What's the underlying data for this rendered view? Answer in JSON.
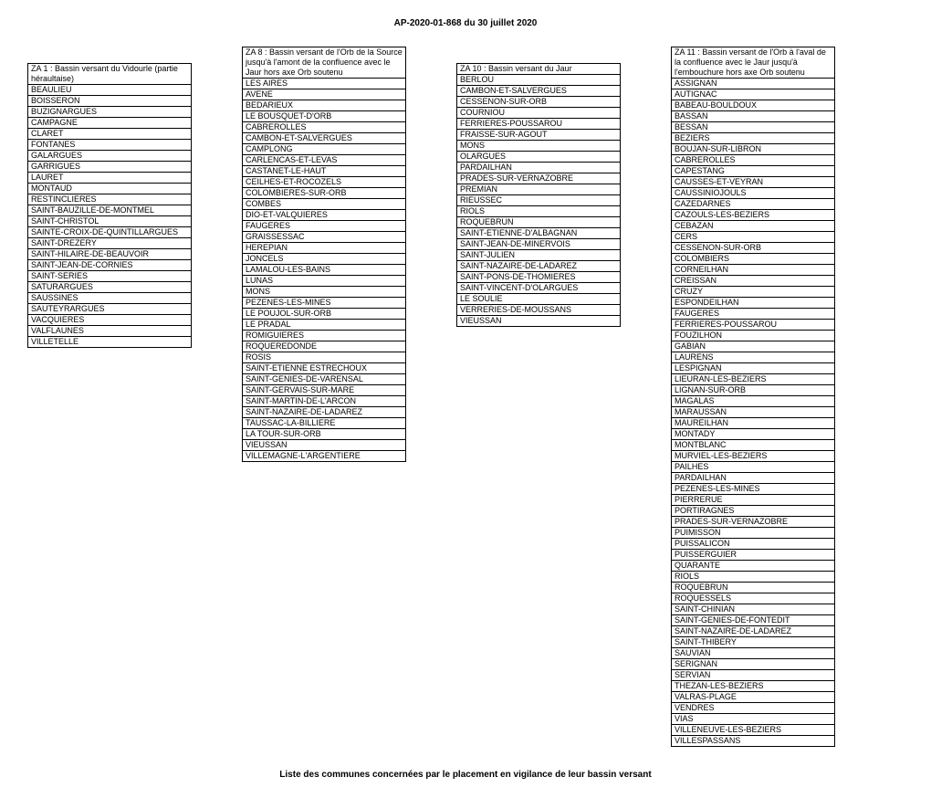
{
  "title": "AP-2020-01-868 du 30 juillet 2020",
  "footer": "Liste des communes concernées par le placement en vigilance de leur bassin versant",
  "tables": [
    {
      "header": "ZA 1 : Bassin versant du Vidourle (partie héraultaise)",
      "rows": [
        "BEAULIEU",
        "BOISSERON",
        "BUZIGNARGUES",
        "CAMPAGNE",
        "CLARET",
        "FONTANES",
        "GALARGUES",
        "GARRIGUES",
        "LAURET",
        "MONTAUD",
        "RESTINCLIERES",
        "SAINT-BAUZILLE-DE-MONTMEL",
        "SAINT-CHRISTOL",
        "SAINTE-CROIX-DE-QUINTILLARGUES",
        "SAINT-DREZERY",
        "SAINT-HILAIRE-DE-BEAUVOIR",
        "SAINT-JEAN-DE-CORNIES",
        "SAINT-SERIES",
        "SATURARGUES",
        "SAUSSINES",
        "SAUTEYRARGUES",
        "VACQUIERES",
        "VALFLAUNES",
        "VILLETELLE"
      ]
    },
    {
      "header": "ZA 8 : Bassin versant de l'Orb de la Source jusqu'à l'amont de la confluence avec le Jaur hors axe Orb soutenu",
      "rows": [
        "LES AIRES",
        "AVENE",
        "BEDARIEUX",
        "LE BOUSQUET-D'ORB",
        "CABREROLLES",
        "CAMBON-ET-SALVERGUES",
        "CAMPLONG",
        "CARLENCAS-ET-LEVAS",
        "CASTANET-LE-HAUT",
        "CEILHES-ET-ROCOZELS",
        "COLOMBIERES-SUR-ORB",
        "COMBES",
        "DIO-ET-VALQUIERES",
        "FAUGERES",
        "GRAISSESSAC",
        "HEREPIAN",
        "JONCELS",
        "LAMALOU-LES-BAINS",
        "LUNAS",
        "MONS",
        "PEZENES-LES-MINES",
        "LE POUJOL-SUR-ORB",
        "LE PRADAL",
        "ROMIGUIERES",
        "ROQUEREDONDE",
        "ROSIS",
        "SAINT-ETIENNE ESTRECHOUX",
        "SAINT-GENIES-DE-VARENSAL",
        "SAINT-GERVAIS-SUR-MARE",
        "SAINT-MARTIN-DE-L'ARCON",
        "SAINT-NAZAIRE-DE-LADAREZ",
        "TAUSSAC-LA-BILLIERE",
        "LA TOUR-SUR-ORB",
        "VIEUSSAN",
        "VILLEMAGNE-L'ARGENTIERE"
      ]
    },
    {
      "header": "ZA 10 : Bassin versant du Jaur",
      "rows": [
        "BERLOU",
        "CAMBON-ET-SALVERGUES",
        "CESSENON-SUR-ORB",
        "COURNIOU",
        "FERRIERES-POUSSAROU",
        "FRAISSE-SUR-AGOUT",
        "MONS",
        "OLARGUES",
        "PARDAILHAN",
        "PRADES-SUR-VERNAZOBRE",
        "PREMIAN",
        "RIEUSSEC",
        "RIOLS",
        "ROQUEBRUN",
        "SAINT-ETIENNE-D'ALBAGNAN",
        "SAINT-JEAN-DE-MINERVOIS",
        "SAINT-JULIEN",
        "SAINT-NAZAIRE-DE-LADAREZ",
        "SAINT-PONS-DE-THOMIERES",
        "SAINT-VINCENT-D'OLARGUES",
        "LE SOULIE",
        "VERRERIES-DE-MOUSSANS",
        "VIEUSSAN"
      ]
    },
    {
      "header": "ZA 11 : Bassin versant de l'Orb à l'aval de la confluence avec le Jaur jusqu'à l'embouchure hors axe Orb soutenu",
      "rows": [
        "ASSIGNAN",
        "AUTIGNAC",
        "BABEAU-BOULDOUX",
        "BASSAN",
        "BESSAN",
        "BEZIERS",
        "BOUJAN-SUR-LIBRON",
        "CABREROLLES",
        "CAPESTANG",
        "CAUSSES-ET-VEYRAN",
        "CAUSSINIOJOULS",
        "CAZEDARNES",
        "CAZOULS-LES-BEZIERS",
        "CEBAZAN",
        "CERS",
        "CESSENON-SUR-ORB",
        "COLOMBIERS",
        "CORNEILHAN",
        "CREISSAN",
        "CRUZY",
        "ESPONDEILHAN",
        "FAUGERES",
        "FERRIERES-POUSSAROU",
        "FOUZILHON",
        "GABIAN",
        "LAURENS",
        "LESPIGNAN",
        "LIEURAN-LES-BEZIERS",
        "LIGNAN-SUR-ORB",
        "MAGALAS",
        "MARAUSSAN",
        "MAUREILHAN",
        "MONTADY",
        "MONTBLANC",
        "MURVIEL-LES-BEZIERS",
        "PAILHES",
        "PARDAILHAN",
        "PEZENES-LES-MINES",
        "PIERRERUE",
        "PORTIRAGNES",
        "PRADES-SUR-VERNAZOBRE",
        "PUIMISSON",
        "PUISSALICON",
        "PUISSERGUIER",
        "QUARANTE",
        "RIOLS",
        "ROQUEBRUN",
        "ROQUESSELS",
        "SAINT-CHINIAN",
        "SAINT-GENIES-DE-FONTEDIT",
        "SAINT-NAZAIRE-DE-LADAREZ",
        "SAINT-THIBERY",
        "SAUVIAN",
        "SERIGNAN",
        "SERVIAN",
        "THEZAN-LES-BEZIERS",
        "VALRAS-PLAGE",
        "VENDRES",
        "VIAS",
        "VILLENEUVE-LES-BEZIERS",
        "VILLESPASSANS"
      ]
    }
  ]
}
